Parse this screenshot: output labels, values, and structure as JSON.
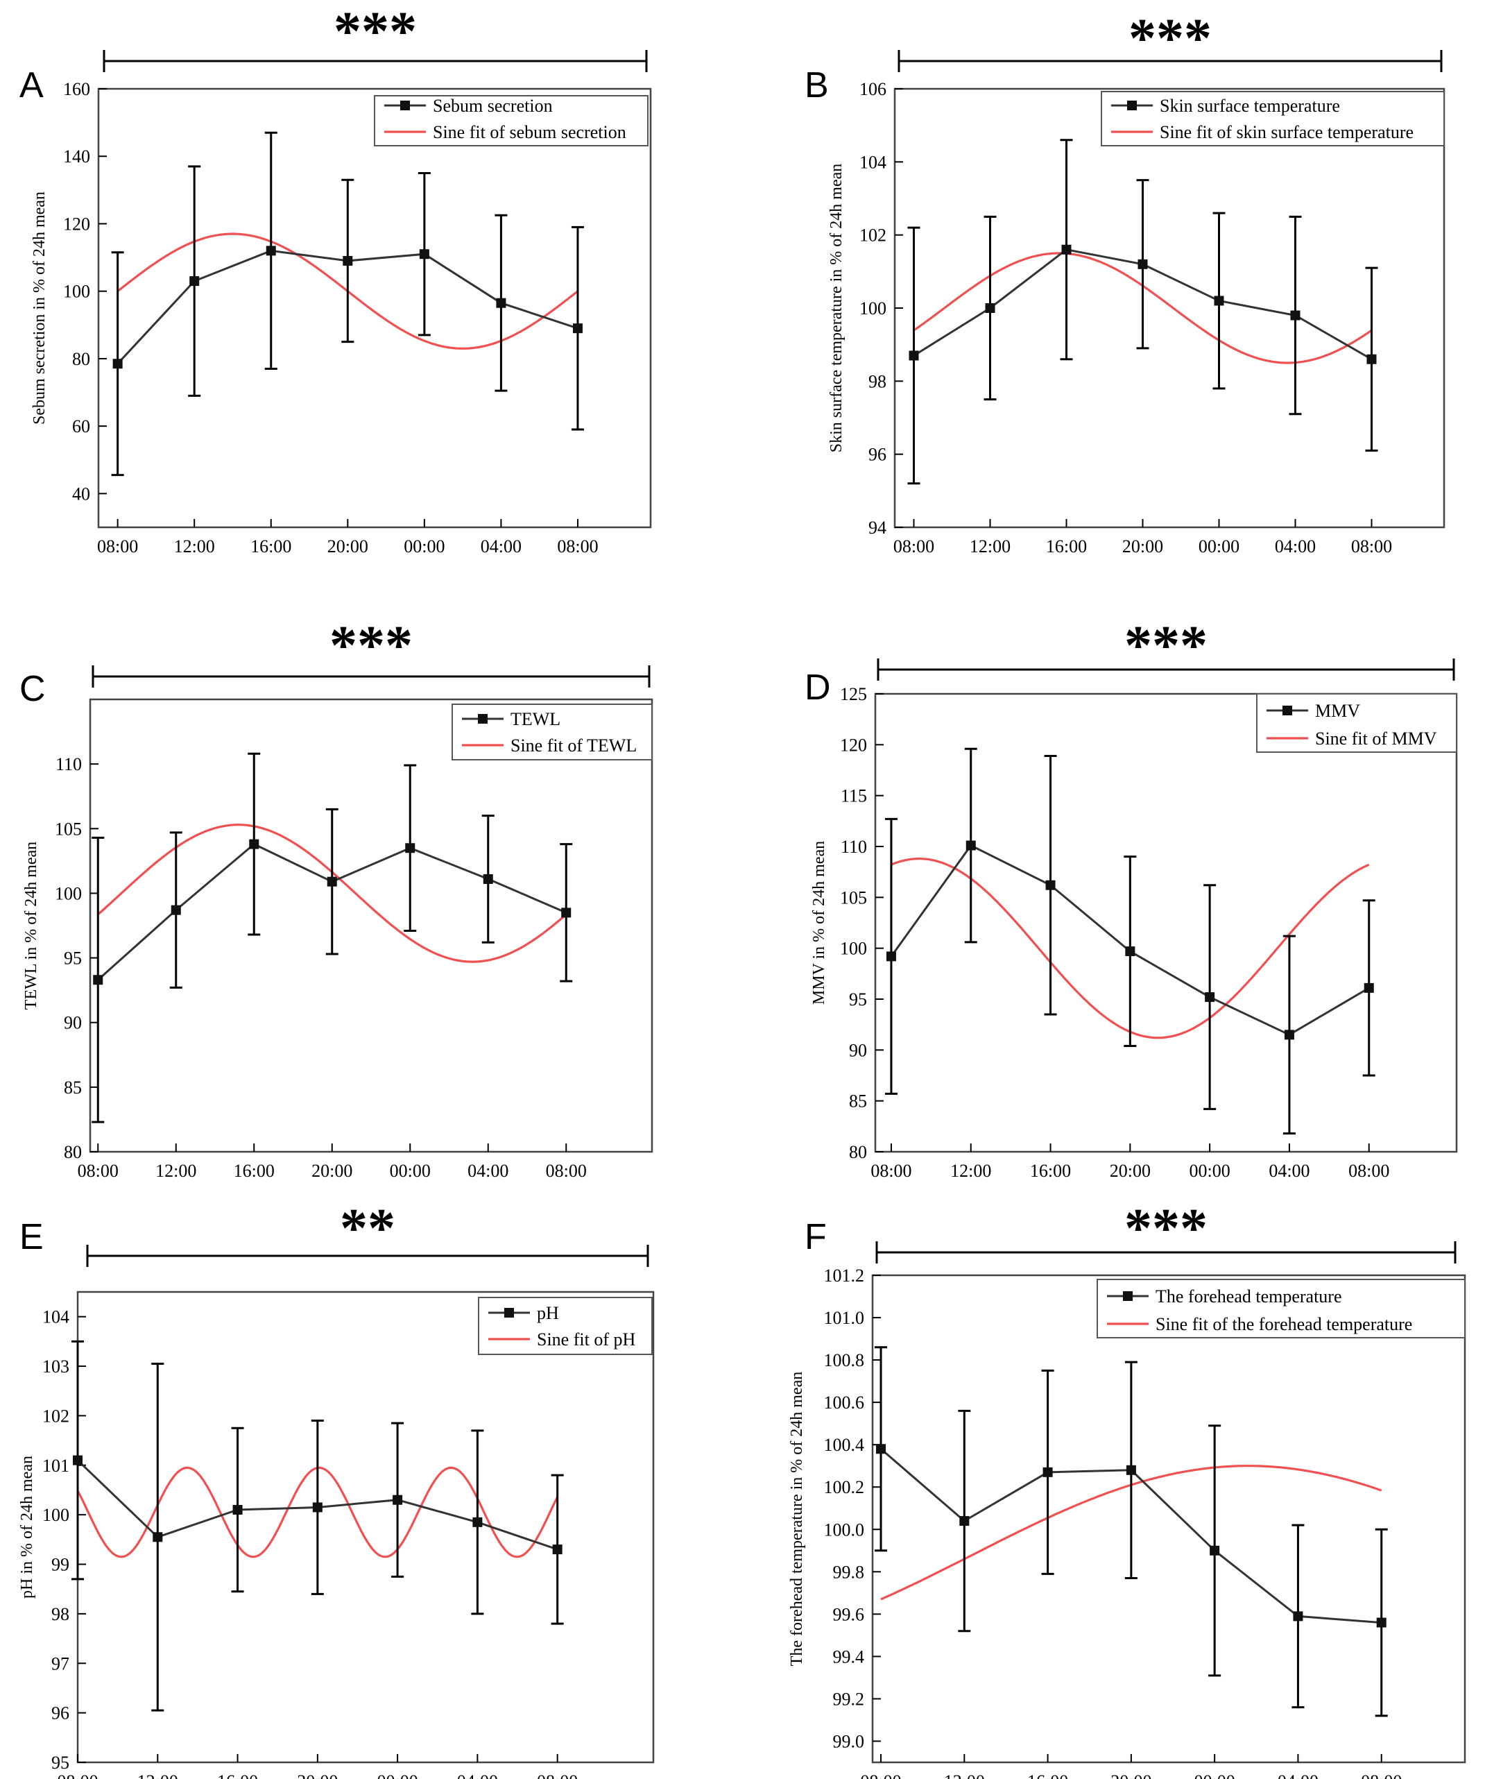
{
  "colors": {
    "data": "#333333",
    "fit": "#f05050",
    "axis": "#000000",
    "text": "#000000"
  },
  "x_ticks": [
    "08:00",
    "12:00",
    "16:00",
    "20:00",
    "00:00",
    "04:00",
    "08:00"
  ],
  "chart_data": [
    {
      "type": "line",
      "panel": "A",
      "significance": "***",
      "ylabel": "Sebum secretion in % of 24h mean",
      "yticks": [
        "40",
        "60",
        "80",
        "100",
        "120",
        "140",
        "160"
      ],
      "ylim": [
        30,
        160
      ],
      "xlim": [
        -0.25,
        6.95
      ],
      "legend": [
        "Sebum secretion",
        "Sine fit of sebum secretion"
      ],
      "series": [
        {
          "name": "Sebum secretion",
          "values": [
            78.5,
            103,
            112,
            109,
            111,
            96.5,
            89
          ],
          "errors": [
            33,
            34,
            35,
            24,
            24,
            26,
            30
          ]
        },
        {
          "name": "Sine fit of sebum secretion",
          "fit": {
            "mean": 100,
            "amp": 17,
            "period": 6,
            "phase": 1.5
          }
        }
      ]
    },
    {
      "type": "line",
      "panel": "B",
      "significance": "***",
      "ylabel": "Skin surface temperature in % of 24h mean",
      "yticks": [
        "94",
        "96",
        "98",
        "100",
        "102",
        "104",
        "106"
      ],
      "ylim": [
        94,
        106
      ],
      "xlim": [
        -0.25,
        6.95
      ],
      "legend": [
        "Skin surface temperature",
        "Sine fit of skin surface temperature"
      ],
      "series": [
        {
          "name": "Skin surface temperature",
          "values": [
            98.7,
            100,
            101.6,
            101.2,
            100.2,
            99.8,
            98.6
          ],
          "errors": [
            3.5,
            2.5,
            3.0,
            2.3,
            2.4,
            2.7,
            2.5
          ]
        },
        {
          "name": "Sine fit of skin surface temperature",
          "fit": {
            "mean": 100,
            "amp": 1.5,
            "period": 6,
            "phase": 1.9
          }
        }
      ]
    },
    {
      "type": "line",
      "panel": "C",
      "significance": "***",
      "ylabel": "TEWL in % of 24h mean",
      "yticks": [
        "80",
        "85",
        "90",
        "95",
        "100",
        "105",
        "110"
      ],
      "ylim": [
        80,
        115
      ],
      "xlim": [
        -0.1,
        7.1
      ],
      "legend": [
        "TEWL",
        "Sine fit of TEWL"
      ],
      "series": [
        {
          "name": "TEWL",
          "values": [
            93.3,
            98.7,
            103.8,
            100.9,
            103.5,
            101.1,
            98.5
          ],
          "errors": [
            11,
            6.0,
            7.0,
            5.6,
            6.4,
            4.9,
            5.3
          ]
        },
        {
          "name": "Sine fit of TEWL",
          "fit": {
            "mean": 100,
            "amp": 5.3,
            "period": 6,
            "phase": 1.8
          }
        }
      ]
    },
    {
      "type": "line",
      "panel": "D",
      "significance": "***",
      "ylabel": "MMV in % of 24h mean",
      "yticks": [
        "80",
        "85",
        "90",
        "95",
        "100",
        "105",
        "110",
        "115",
        "120",
        "125"
      ],
      "ylim": [
        80,
        125
      ],
      "xlim": [
        -0.2,
        7.1
      ],
      "legend": [
        "MMV",
        "Sine fit of MMV"
      ],
      "series": [
        {
          "name": "MMV",
          "values": [
            99.2,
            110.1,
            106.2,
            99.7,
            95.2,
            91.5,
            96.1
          ],
          "errors": [
            13.5,
            9.5,
            12.7,
            9.3,
            11.0,
            9.7,
            8.6
          ]
        },
        {
          "name": "Sine fit of MMV",
          "fit": {
            "mean": 100,
            "amp": 8.8,
            "period": 6,
            "phase": 0.35
          }
        }
      ]
    },
    {
      "type": "line",
      "panel": "E",
      "significance": "**",
      "ylabel": "pH in % of 24h mean",
      "yticks": [
        "95",
        "96",
        "97",
        "98",
        "99",
        "100",
        "101",
        "102",
        "103",
        "104"
      ],
      "ylim": [
        95,
        104.5
      ],
      "xlim": [
        0,
        7.2
      ],
      "legend": [
        "pH",
        "Sine fit of pH"
      ],
      "series": [
        {
          "name": "pH",
          "values": [
            101.1,
            99.55,
            100.1,
            100.15,
            100.3,
            99.85,
            99.3
          ],
          "errors": [
            2.4,
            3.5,
            1.65,
            1.75,
            1.55,
            1.85,
            1.5
          ]
        },
        {
          "name": "Sine fit of pH",
          "fit": {
            "mean": 100.05,
            "amp": 0.9,
            "period": 1.65,
            "phase": -0.28
          }
        }
      ]
    },
    {
      "type": "line",
      "panel": "F",
      "significance": "***",
      "ylabel": "The forehead temperature in % of 24h mean",
      "yticks": [
        "99.0",
        "99.2",
        "99.4",
        "99.6",
        "99.8",
        "100.0",
        "100.2",
        "100.4",
        "100.6",
        "100.8",
        "101.0",
        "101.2"
      ],
      "ylim": [
        98.9,
        101.2
      ],
      "xlim": [
        -0.1,
        7.0
      ],
      "legend": [
        "The forehead temperature",
        "Sine fit of the forehead temperature"
      ],
      "series": [
        {
          "name": "The forehead temperature",
          "values": [
            100.38,
            100.04,
            100.27,
            100.28,
            99.9,
            99.59,
            99.56
          ],
          "errors": [
            0.48,
            0.52,
            0.48,
            0.51,
            0.59,
            0.43,
            0.44
          ]
        },
        {
          "name": "Sine fit of the forehead temperature",
          "fit": {
            "mean": 99.88,
            "amp": 0.42,
            "period": 13.2,
            "phase": 4.4
          }
        }
      ]
    }
  ]
}
